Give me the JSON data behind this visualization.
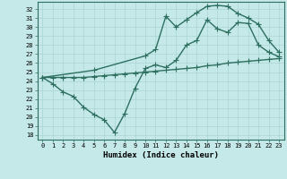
{
  "xlabel": "Humidex (Indice chaleur)",
  "ylabel": "",
  "bg_color": "#c5e8e8",
  "line_color": "#2d7060",
  "grid_color": "#aad4d4",
  "xlim": [
    -0.5,
    23.5
  ],
  "ylim": [
    17.5,
    32.8
  ],
  "yticks": [
    18,
    19,
    20,
    21,
    22,
    23,
    24,
    25,
    26,
    27,
    28,
    29,
    30,
    31,
    32
  ],
  "xticks": [
    0,
    1,
    2,
    3,
    4,
    5,
    6,
    7,
    8,
    9,
    10,
    11,
    12,
    13,
    14,
    15,
    16,
    17,
    18,
    19,
    20,
    21,
    22,
    23
  ],
  "line1_x": [
    0,
    1,
    2,
    3,
    4,
    5,
    6,
    7,
    8,
    9,
    10,
    11,
    12,
    13,
    14,
    15,
    16,
    17,
    18,
    19,
    20,
    21,
    22,
    23
  ],
  "line1_y": [
    24.4,
    24.4,
    24.4,
    24.4,
    24.4,
    24.5,
    24.6,
    24.7,
    24.8,
    24.9,
    25.0,
    25.1,
    25.2,
    25.3,
    25.4,
    25.5,
    25.7,
    25.8,
    26.0,
    26.1,
    26.2,
    26.3,
    26.4,
    26.5
  ],
  "line2_x": [
    0,
    1,
    2,
    3,
    4,
    5,
    6,
    7,
    8,
    9,
    10,
    11,
    12,
    13,
    14,
    15,
    16,
    17,
    18,
    19,
    20,
    21,
    22,
    23
  ],
  "line2_y": [
    24.4,
    23.7,
    22.8,
    22.3,
    21.1,
    20.3,
    19.7,
    18.3,
    20.4,
    23.2,
    25.4,
    25.8,
    25.5,
    26.3,
    28.0,
    28.5,
    30.8,
    29.8,
    29.4,
    30.5,
    30.4,
    28.0,
    27.2,
    26.7
  ],
  "line3_x": [
    0,
    5,
    10,
    11,
    12,
    13,
    14,
    15,
    16,
    17,
    18,
    19,
    20,
    21,
    22,
    23
  ],
  "line3_y": [
    24.4,
    25.2,
    26.8,
    27.5,
    31.2,
    30.0,
    30.8,
    31.6,
    32.3,
    32.4,
    32.3,
    31.5,
    31.0,
    30.3,
    28.5,
    27.2
  ],
  "marker": "+",
  "markersize": 4,
  "linewidth": 1.0
}
